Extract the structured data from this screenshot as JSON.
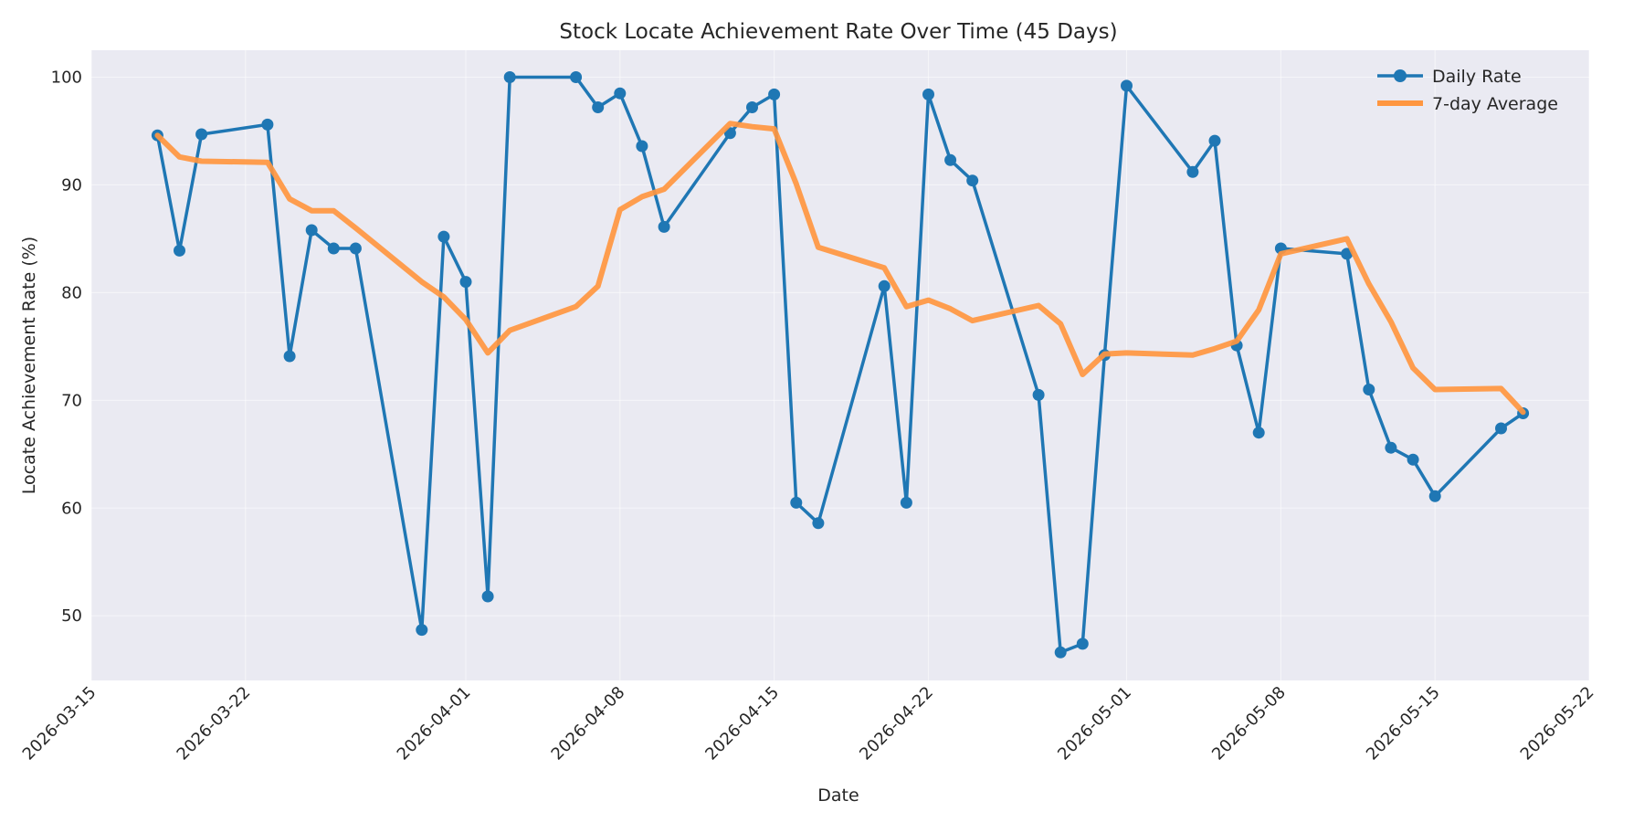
{
  "chart_data": {
    "type": "line",
    "title": "Stock Locate Achievement Rate Over Time (45 Days)",
    "xlabel": "Date",
    "ylabel": "Locate Achievement Rate (%)",
    "xlim": [
      "2026-03-15",
      "2026-05-22"
    ],
    "ylim": [
      44,
      102.5
    ],
    "x_ticks": [
      "2026-03-15",
      "2026-03-22",
      "2026-04-01",
      "2026-04-08",
      "2026-04-15",
      "2026-04-22",
      "2026-05-01",
      "2026-05-08",
      "2026-05-15",
      "2026-05-22"
    ],
    "y_ticks": [
      50,
      60,
      70,
      80,
      90,
      100
    ],
    "grid": true,
    "legend": "top-right",
    "x": [
      "2026-03-18",
      "2026-03-19",
      "2026-03-20",
      "2026-03-23",
      "2026-03-24",
      "2026-03-25",
      "2026-03-26",
      "2026-03-27",
      "2026-03-30",
      "2026-03-31",
      "2026-04-01",
      "2026-04-02",
      "2026-04-03",
      "2026-04-06",
      "2026-04-07",
      "2026-04-08",
      "2026-04-09",
      "2026-04-10",
      "2026-04-13",
      "2026-04-14",
      "2026-04-15",
      "2026-04-16",
      "2026-04-17",
      "2026-04-20",
      "2026-04-21",
      "2026-04-22",
      "2026-04-23",
      "2026-04-24",
      "2026-04-27",
      "2026-04-28",
      "2026-04-29",
      "2026-04-30",
      "2026-05-01",
      "2026-05-04",
      "2026-05-05",
      "2026-05-06",
      "2026-05-07",
      "2026-05-08",
      "2026-05-11",
      "2026-05-12",
      "2026-05-13",
      "2026-05-14",
      "2026-05-15",
      "2026-05-18",
      "2026-05-19"
    ],
    "series": [
      {
        "name": "Daily Rate",
        "color": "#1f77b4",
        "marker": "circle",
        "values": [
          94.6,
          83.9,
          94.7,
          95.6,
          74.1,
          85.8,
          84.1,
          84.1,
          48.7,
          85.2,
          81.0,
          51.8,
          100.0,
          100.0,
          97.2,
          98.5,
          93.6,
          86.1,
          94.8,
          97.2,
          98.4,
          60.5,
          58.6,
          80.6,
          60.5,
          98.4,
          92.3,
          90.4,
          70.5,
          46.6,
          47.4,
          74.2,
          99.2,
          91.2,
          94.1,
          75.1,
          67.0,
          84.1,
          83.6,
          71.0,
          65.6,
          64.5,
          61.1,
          67.4,
          68.8
        ]
      },
      {
        "name": "7-day Average",
        "color": "#ff9640",
        "marker": "none",
        "values": [
          94.6,
          92.6,
          92.2,
          92.1,
          88.7,
          87.6,
          87.6,
          86.0,
          81.0,
          79.6,
          77.5,
          74.4,
          76.5,
          78.7,
          80.6,
          87.7,
          88.9,
          89.6,
          95.7,
          95.4,
          95.2,
          90.1,
          84.2,
          82.3,
          78.7,
          79.3,
          78.5,
          77.4,
          78.8,
          77.1,
          72.4,
          74.3,
          74.4,
          74.2,
          74.8,
          75.5,
          78.4,
          83.6,
          85.0,
          80.8,
          77.3,
          73.0,
          71.0,
          71.1,
          68.9
        ]
      }
    ]
  }
}
